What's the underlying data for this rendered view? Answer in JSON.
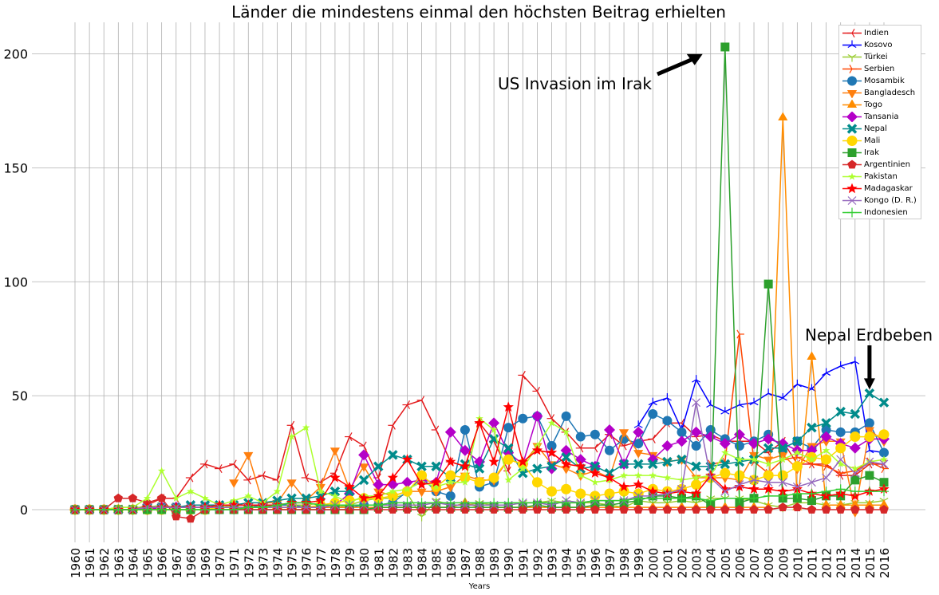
{
  "chart_data": {
    "type": "line",
    "title": "Länder die mindestens einmal den höchsten Beitrag erhielten",
    "xlabel": "Years",
    "ylabel": "",
    "ylim": [
      -15,
      215
    ],
    "yticks": [
      0,
      50,
      100,
      150,
      200
    ],
    "grid": true,
    "legend_position": "top-right",
    "x": [
      "1960",
      "1961",
      "1962",
      "1963",
      "1964",
      "1965",
      "1966",
      "1967",
      "1968",
      "1969",
      "1970",
      "1971",
      "1972",
      "1973",
      "1974",
      "1975",
      "1976",
      "1977",
      "1978",
      "1979",
      "1980",
      "1981",
      "1982",
      "1983",
      "1984",
      "1985",
      "1986",
      "1987",
      "1988",
      "1989",
      "1990",
      "1991",
      "1992",
      "1993",
      "1994",
      "1995",
      "1996",
      "1997",
      "1998",
      "1999",
      "2000",
      "2001",
      "2002",
      "2003",
      "2004",
      "2005",
      "2006",
      "2007",
      "2008",
      "2009",
      "2010",
      "2011",
      "2012",
      "2013",
      "2014",
      "2015",
      "2016"
    ],
    "series": [
      {
        "name": "Indien",
        "color": "#e41a1c",
        "marker": "tri_left",
        "values": [
          0,
          0,
          0,
          0,
          0,
          2,
          5,
          5,
          14,
          20,
          18,
          20,
          13,
          15,
          13,
          37,
          14,
          12,
          16,
          32,
          28,
          14,
          37,
          46,
          48,
          35,
          21,
          19,
          38,
          30,
          17,
          59,
          52,
          40,
          34,
          27,
          27,
          33,
          28,
          30,
          31,
          38,
          38,
          32,
          33,
          30,
          30,
          30,
          25,
          30,
          20,
          20,
          20,
          15,
          15,
          20,
          20
        ]
      },
      {
        "name": "Kosovo",
        "color": "#0000ff",
        "marker": "tri_up",
        "values": [
          null,
          null,
          null,
          null,
          null,
          null,
          null,
          null,
          null,
          null,
          null,
          null,
          null,
          null,
          null,
          null,
          null,
          null,
          null,
          null,
          null,
          null,
          null,
          null,
          null,
          null,
          null,
          null,
          null,
          null,
          null,
          null,
          null,
          null,
          null,
          null,
          null,
          null,
          null,
          37,
          47,
          49,
          35,
          57,
          46,
          43,
          46,
          47,
          51,
          49,
          55,
          53,
          60,
          63,
          65,
          26,
          25
        ]
      },
      {
        "name": "Türkei",
        "color": "#9acd32",
        "marker": "tri_down",
        "values": [
          0,
          0,
          0,
          1,
          1,
          1,
          2,
          1,
          1,
          1,
          1,
          2,
          2,
          1,
          2,
          2,
          2,
          3,
          1,
          2,
          4,
          5,
          5,
          7,
          -3,
          4,
          2,
          2,
          3,
          2,
          2,
          3,
          3,
          4,
          3,
          3,
          3,
          2,
          1,
          4,
          3,
          3,
          4,
          3,
          5,
          5,
          5,
          4,
          2,
          1,
          3,
          3,
          2,
          2,
          3,
          3,
          4
        ]
      },
      {
        "name": "Serbien",
        "color": "#ff4500",
        "marker": "tri_right",
        "values": [
          null,
          null,
          null,
          null,
          null,
          null,
          null,
          null,
          null,
          null,
          null,
          null,
          null,
          null,
          null,
          null,
          null,
          null,
          null,
          null,
          null,
          null,
          null,
          null,
          null,
          null,
          null,
          null,
          null,
          null,
          null,
          null,
          null,
          null,
          null,
          null,
          null,
          null,
          null,
          null,
          null,
          null,
          null,
          null,
          20,
          21,
          77,
          21,
          16,
          22,
          23,
          20,
          19,
          16,
          17,
          21,
          18
        ]
      },
      {
        "name": "Mosambik",
        "color": "#1f77b4",
        "marker": "circle",
        "values": [
          0,
          0,
          0,
          0,
          0,
          1,
          1,
          1,
          1,
          1,
          1,
          1,
          1,
          2,
          2,
          2,
          1,
          1,
          1,
          1,
          2,
          2,
          3,
          8,
          14,
          8,
          6,
          35,
          10,
          12,
          36,
          40,
          41,
          28,
          41,
          32,
          33,
          26,
          31,
          29,
          42,
          39,
          34,
          28,
          35,
          31,
          28,
          30,
          33,
          27,
          30,
          27,
          35,
          34,
          34,
          38,
          25
        ]
      },
      {
        "name": "Bangladesch",
        "color": "#ff7f0e",
        "marker": "tri_down_filled",
        "values": [
          null,
          null,
          null,
          null,
          null,
          null,
          null,
          null,
          null,
          null,
          null,
          12,
          24,
          3,
          3,
          12,
          4,
          10,
          26,
          9,
          19,
          8,
          6,
          8,
          8,
          8,
          10,
          15,
          13,
          13,
          22,
          20,
          28,
          20,
          18,
          15,
          17,
          14,
          34,
          25,
          24,
          21,
          22,
          14,
          14,
          14,
          13,
          24,
          22,
          24,
          18,
          28,
          30,
          30,
          -1,
          35,
          30
        ]
      },
      {
        "name": "Togo",
        "color": "#ff8c00",
        "marker": "tri_up_filled",
        "values": [
          0,
          0,
          0,
          0,
          0,
          0,
          1,
          1,
          1,
          1,
          1,
          1,
          1,
          1,
          1,
          1,
          1,
          1,
          1,
          1,
          1,
          1,
          1,
          1,
          1,
          1,
          1,
          3,
          1,
          1,
          1,
          1,
          1,
          1,
          1,
          1,
          1,
          1,
          1,
          1,
          1,
          1,
          1,
          1,
          1,
          1,
          1,
          1,
          1,
          172,
          1,
          67,
          2,
          2,
          2,
          2,
          2
        ]
      },
      {
        "name": "Tansania",
        "color": "#b400c8",
        "marker": "diamond",
        "values": [
          0,
          0,
          0,
          0,
          0,
          0,
          1,
          1,
          1,
          1,
          1,
          1,
          1,
          1,
          1,
          1,
          1,
          1,
          2,
          7,
          24,
          11,
          11,
          12,
          13,
          12,
          34,
          26,
          21,
          38,
          25,
          20,
          41,
          18,
          26,
          22,
          19,
          35,
          20,
          34,
          22,
          28,
          30,
          34,
          32,
          29,
          33,
          29,
          31,
          29,
          26,
          26,
          32,
          29,
          27,
          31,
          31
        ]
      },
      {
        "name": "Nepal",
        "color": "#008b8b",
        "marker": "x_filled",
        "values": [
          0,
          0,
          0,
          0,
          0,
          1,
          1,
          1,
          2,
          2,
          2,
          2,
          3,
          3,
          4,
          5,
          5,
          6,
          8,
          8,
          13,
          19,
          24,
          22,
          19,
          19,
          14,
          20,
          18,
          31,
          27,
          16,
          18,
          19,
          23,
          18,
          19,
          16,
          20,
          20,
          20,
          21,
          22,
          19,
          19,
          20,
          21,
          22,
          27,
          27,
          30,
          36,
          38,
          43,
          42,
          51,
          47
        ]
      },
      {
        "name": "Mali",
        "color": "#ffd700",
        "marker": "circle_big",
        "values": [
          0,
          0,
          0,
          0,
          0,
          0,
          0,
          0,
          0,
          0,
          1,
          1,
          1,
          1,
          1,
          1,
          1,
          2,
          3,
          4,
          5,
          5,
          6,
          8,
          15,
          10,
          15,
          14,
          12,
          14,
          22,
          20,
          12,
          8,
          9,
          7,
          6,
          7,
          8,
          7,
          9,
          8,
          9,
          11,
          14,
          16,
          15,
          13,
          15,
          15,
          19,
          23,
          22,
          27,
          32,
          32,
          33
        ]
      },
      {
        "name": "Irak",
        "color": "#2ca02c",
        "marker": "square",
        "values": [
          0,
          0,
          0,
          0,
          0,
          0,
          0,
          0,
          0,
          0,
          0,
          0,
          0,
          0,
          0,
          0,
          0,
          0,
          0,
          0,
          0,
          1,
          1,
          1,
          1,
          1,
          1,
          1,
          1,
          1,
          1,
          1,
          2,
          1,
          1,
          1,
          2,
          2,
          3,
          4,
          6,
          6,
          5,
          6,
          2,
          203,
          3,
          5,
          99,
          5,
          5,
          4,
          6,
          6,
          13,
          15,
          12
        ]
      },
      {
        "name": "Argentinien",
        "color": "#d62728",
        "marker": "pentagon",
        "values": [
          0,
          0,
          0,
          5,
          5,
          3,
          5,
          -3,
          -4,
          0,
          0,
          0,
          0,
          0,
          0,
          0,
          0,
          0,
          0,
          0,
          0,
          0,
          0,
          0,
          0,
          0,
          0,
          0,
          0,
          0,
          0,
          0,
          0,
          0,
          0,
          0,
          0,
          0,
          0,
          0,
          0,
          0,
          0,
          0,
          0,
          0,
          0,
          0,
          0,
          1,
          1,
          0,
          0,
          0,
          0,
          0,
          0
        ]
      },
      {
        "name": "Pakistan",
        "color": "#adff2f",
        "marker": "star_small",
        "values": [
          0,
          0,
          0,
          1,
          1,
          5,
          17,
          5,
          8,
          5,
          2,
          4,
          6,
          3,
          8,
          32,
          36,
          8,
          6,
          3,
          6,
          6,
          8,
          9,
          12,
          10,
          12,
          12,
          40,
          35,
          13,
          18,
          28,
          38,
          34,
          15,
          12,
          13,
          15,
          15,
          15,
          14,
          13,
          14,
          15,
          25,
          22,
          22,
          20,
          22,
          25,
          22,
          26,
          20,
          18,
          21,
          22
        ]
      },
      {
        "name": "Madagaskar",
        "color": "#ff0000",
        "marker": "star",
        "values": [
          0,
          0,
          0,
          0,
          0,
          1,
          1,
          1,
          1,
          1,
          2,
          2,
          2,
          2,
          2,
          3,
          3,
          4,
          14,
          10,
          5,
          6,
          14,
          22,
          11,
          12,
          21,
          19,
          38,
          21,
          45,
          21,
          26,
          25,
          20,
          19,
          16,
          14,
          10,
          11,
          8,
          7,
          8,
          7,
          15,
          9,
          10,
          9,
          9,
          8,
          9,
          7,
          6,
          7,
          6,
          8,
          9
        ]
      },
      {
        "name": "Kongo (D. R.)",
        "color": "#9467bd",
        "marker": "x",
        "values": [
          0,
          0,
          0,
          0,
          0,
          1,
          1,
          1,
          1,
          1,
          1,
          1,
          1,
          1,
          1,
          1,
          1,
          1,
          2,
          2,
          2,
          2,
          2,
          2,
          2,
          3,
          2,
          2,
          2,
          2,
          2,
          3,
          3,
          2,
          4,
          3,
          4,
          4,
          4,
          6,
          6,
          7,
          9,
          47,
          14,
          8,
          11,
          13,
          12,
          12,
          10,
          12,
          14,
          22,
          16,
          21,
          20
        ]
      },
      {
        "name": "Indonesien",
        "color": "#32cd32",
        "marker": "plus",
        "values": [
          0,
          0,
          0,
          0,
          0,
          0,
          0,
          0,
          0,
          0,
          0,
          0,
          1,
          1,
          2,
          3,
          3,
          2,
          2,
          2,
          2,
          2,
          3,
          3,
          3,
          3,
          3,
          3,
          3,
          3,
          3,
          3,
          3,
          3,
          3,
          3,
          4,
          4,
          4,
          5,
          5,
          5,
          5,
          5,
          4,
          5,
          5,
          5,
          6,
          6,
          7,
          7,
          8,
          9,
          8,
          8,
          8
        ]
      }
    ],
    "annotations": [
      {
        "text": "US Invasion im Irak",
        "target": [
          "2004",
          202
        ]
      },
      {
        "text": "Nepal Erdbeben",
        "target": [
          "2015",
          52
        ]
      }
    ]
  }
}
